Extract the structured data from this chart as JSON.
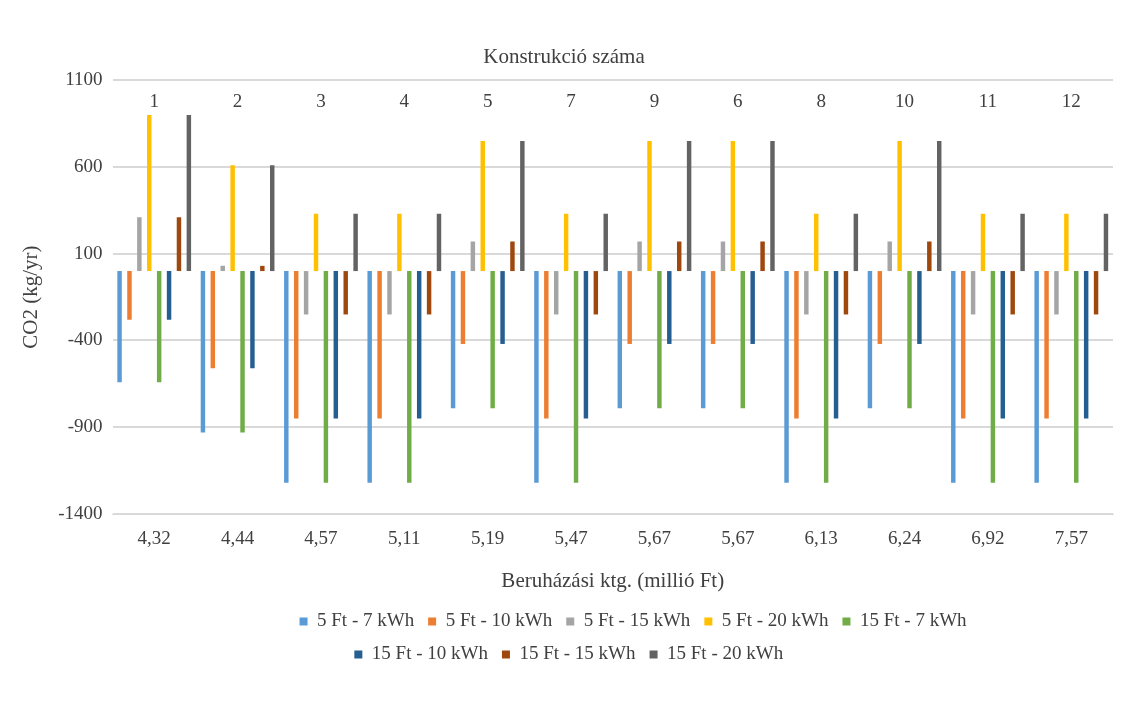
{
  "chart_data": {
    "type": "bar",
    "title": "Konstrukció száma",
    "xlabel": "Beruházási ktg. (millió Ft)",
    "ylabel": "CO2 (kg/yr)",
    "categories": [
      "4,32",
      "4,44",
      "4,57",
      "5,11",
      "5,19",
      "5,47",
      "5,67",
      "5,67",
      "6,13",
      "6,24",
      "6,92",
      "7,57"
    ],
    "annotations": [
      "1",
      "2",
      "3",
      "4",
      "5",
      "7",
      "9",
      "6",
      "8",
      "10",
      "11",
      "12"
    ],
    "ylim": [
      -1400,
      1100
    ],
    "yticks": [
      -1400,
      -900,
      -400,
      100,
      600,
      1100
    ],
    "grid": "y",
    "legend": "bottom",
    "series": [
      {
        "name": "5 Ft - 7 kWh",
        "color": "#5b9bd5",
        "values": [
          -640,
          -930,
          -1220,
          -1220,
          -790,
          -1220,
          -790,
          -790,
          -1220,
          -790,
          -1220,
          -1220
        ]
      },
      {
        "name": "5 Ft - 10 kWh",
        "color": "#ed7d31",
        "values": [
          -280,
          -560,
          -850,
          -850,
          -420,
          -850,
          -420,
          -420,
          -850,
          -420,
          -850,
          -850
        ]
      },
      {
        "name": "5 Ft - 15 kWh",
        "color": "#a5a5a5",
        "values": [
          310,
          30,
          -250,
          -250,
          170,
          -250,
          170,
          170,
          -250,
          170,
          -250,
          -250
        ]
      },
      {
        "name": "5 Ft - 20 kWh",
        "color": "#ffc000",
        "values": [
          900,
          610,
          330,
          330,
          750,
          330,
          750,
          750,
          330,
          750,
          330,
          330
        ]
      },
      {
        "name": "15 Ft - 7 kWh",
        "color": "#70ad47",
        "values": [
          -640,
          -930,
          -1220,
          -1220,
          -790,
          -1220,
          -790,
          -790,
          -1220,
          -790,
          -1220,
          -1220
        ]
      },
      {
        "name": "15 Ft - 10 kWh",
        "color": "#255e91",
        "values": [
          -280,
          -560,
          -850,
          -850,
          -420,
          -850,
          -420,
          -420,
          -850,
          -420,
          -850,
          -850
        ]
      },
      {
        "name": "15 Ft - 15 kWh",
        "color": "#9e480e",
        "values": [
          310,
          30,
          -250,
          -250,
          170,
          -250,
          170,
          170,
          -250,
          170,
          -250,
          -250
        ]
      },
      {
        "name": "15 Ft - 20 kWh",
        "color": "#636363",
        "values": [
          900,
          610,
          330,
          330,
          750,
          330,
          750,
          750,
          330,
          750,
          330,
          330
        ]
      }
    ]
  }
}
